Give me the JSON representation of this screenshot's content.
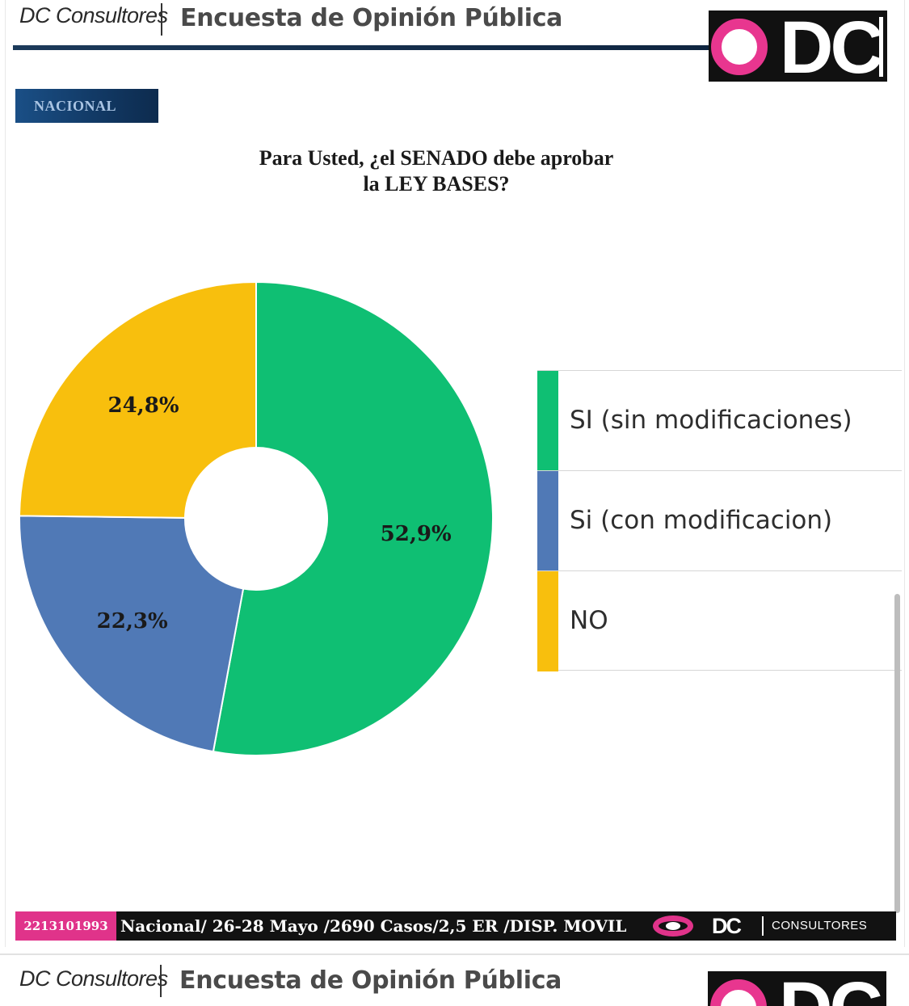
{
  "header": {
    "brand": "DC Consultores",
    "survey_title": "Encuesta de Opinión Pública",
    "logo_text": "DC"
  },
  "region_tag": "NACIONAL",
  "chart_data": {
    "type": "pie",
    "title_lines": [
      "Para Usted, ¿el SENADO debe aprobar",
      "la LEY BASES?"
    ],
    "categories": [
      "SI (sin modificaciones)",
      "Si (con modificacion)",
      "NO"
    ],
    "values": [
      52.9,
      22.3,
      24.8
    ],
    "value_labels": [
      "52,9%",
      "22,3%",
      "24,8%"
    ],
    "colors": [
      "#0fbf73",
      "#5079b6",
      "#f8bf0d"
    ],
    "legend_position": "right"
  },
  "footer": {
    "phone": "2213101993",
    "meta": "Nacional/ 26-28 Mayo /2690 Casos/2,5 ER /DISP. MOVIL",
    "logo_text": "DC",
    "logo_word": "CONSULTORES"
  }
}
